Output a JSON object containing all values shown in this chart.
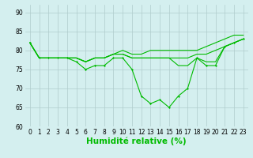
{
  "x": [
    0,
    1,
    2,
    3,
    4,
    5,
    6,
    7,
    8,
    9,
    10,
    11,
    12,
    13,
    14,
    15,
    16,
    17,
    18,
    19,
    20,
    21,
    22,
    23
  ],
  "line1": [
    82,
    78,
    78,
    78,
    78,
    77,
    75,
    76,
    76,
    78,
    78,
    75,
    68,
    66,
    67,
    65,
    68,
    70,
    78,
    76,
    76,
    81,
    82,
    83
  ],
  "line2": [
    82,
    78,
    78,
    78,
    78,
    78,
    77,
    78,
    78,
    79,
    79,
    78,
    78,
    78,
    78,
    78,
    78,
    78,
    79,
    79,
    80,
    81,
    82,
    83
  ],
  "line3": [
    82,
    78,
    78,
    78,
    78,
    78,
    77,
    78,
    78,
    79,
    79,
    78,
    78,
    78,
    78,
    78,
    76,
    76,
    78,
    77,
    77,
    81,
    82,
    83
  ],
  "line4": [
    82,
    78,
    78,
    78,
    78,
    78,
    77,
    78,
    78,
    79,
    80,
    79,
    79,
    80,
    80,
    80,
    80,
    80,
    80,
    81,
    82,
    83,
    84,
    84
  ],
  "line_color": "#00bb00",
  "bg_color": "#d4efef",
  "grid_color": "#b0cccc",
  "ylabel_text": "Humidité relative (%)",
  "ylim": [
    60,
    92
  ],
  "xlim": [
    -0.5,
    23.5
  ],
  "yticks": [
    60,
    65,
    70,
    75,
    80,
    85,
    90
  ],
  "xticks": [
    0,
    1,
    2,
    3,
    4,
    5,
    6,
    7,
    8,
    9,
    10,
    11,
    12,
    13,
    14,
    15,
    16,
    17,
    18,
    19,
    20,
    21,
    22,
    23
  ],
  "tick_fontsize": 5.5,
  "xlabel_fontsize": 7.5,
  "lw": 0.8,
  "marker_size": 1.5
}
